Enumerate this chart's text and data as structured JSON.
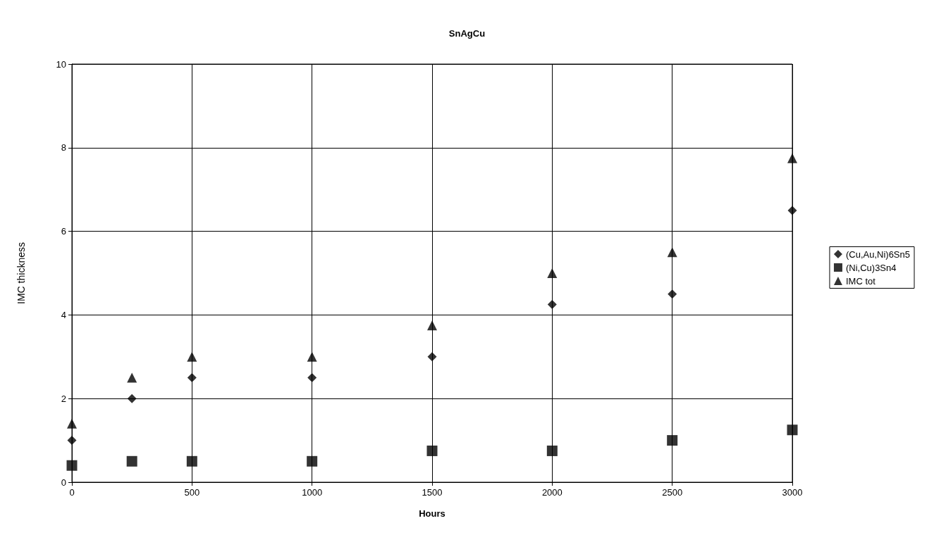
{
  "chart_data": {
    "type": "scatter",
    "title": "SnAgCu",
    "xlabel": "Hours",
    "ylabel": "IMC thickness",
    "x": [
      0,
      250,
      500,
      1000,
      1500,
      2000,
      2500,
      3000
    ],
    "series": [
      {
        "name": "(Cu,Au,Ni)6Sn5",
        "color": "#000000",
        "marker": "diamond",
        "values": [
          1.0,
          2.0,
          2.5,
          2.5,
          3.0,
          4.25,
          4.5,
          6.5
        ]
      },
      {
        "name": "(Ni,Cu)3Sn4",
        "color": "#000000",
        "marker": "square",
        "values": [
          0.4,
          0.5,
          0.5,
          0.5,
          0.75,
          0.75,
          1.0,
          1.25
        ]
      },
      {
        "name": "IMC tot",
        "color": "#000000",
        "marker": "triangle",
        "values": [
          1.4,
          2.5,
          3.0,
          3.0,
          3.75,
          5.0,
          5.5,
          7.75
        ]
      }
    ],
    "xlim": [
      0,
      3000
    ],
    "xticks": [
      0,
      500,
      1000,
      1500,
      2000,
      2500,
      3000
    ],
    "ylim": [
      0,
      10
    ],
    "yticks": [
      0,
      2,
      4,
      6,
      8,
      10
    ],
    "grid": true,
    "legend": "right"
  }
}
